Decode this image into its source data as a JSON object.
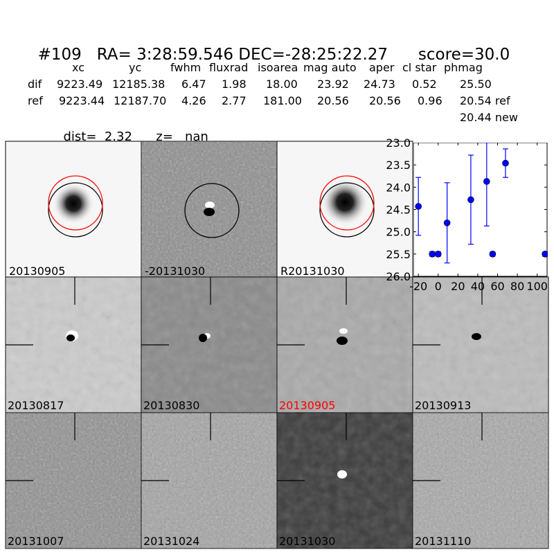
{
  "title": {
    "id": "#109",
    "coords": "RA= 3:28:59.546 DEC=-28:25:22.27",
    "score": "score=30.0"
  },
  "table": {
    "headers": [
      "xc",
      "yc",
      "fwhm",
      "fluxrad",
      "isoarea",
      "mag auto",
      "aper",
      "cl star",
      "phmag"
    ],
    "rows": [
      {
        "label": "dif",
        "values": [
          "9223.49",
          "12185.38",
          "6.47",
          "1.98",
          "18.00",
          "23.92",
          "24.73",
          "0.52",
          "25.50"
        ]
      },
      {
        "label": "ref",
        "values": [
          "9223.44",
          "12187.70",
          "4.26",
          "2.77",
          "181.00",
          "20.56",
          "20.56",
          "0.96",
          "20.54 ref"
        ]
      }
    ],
    "extra": "20.44 new"
  },
  "dist": {
    "dist": "dist=  2.32",
    "z": "z=   nan"
  },
  "stamps": [
    {
      "label": "20130905",
      "kind": "sci"
    },
    {
      "label": "-20131030",
      "kind": "diff"
    },
    {
      "label": "R20131030",
      "kind": "sci"
    },
    {
      "label": "20130817",
      "kind": "epoch",
      "bg": "#cbcbcb"
    },
    {
      "label": "20130830",
      "kind": "epoch",
      "bg": "#8a8a8a"
    },
    {
      "label": "20130905",
      "kind": "epoch",
      "bg": "#a9a9a9",
      "color": "#ff0000"
    },
    {
      "label": "20130913",
      "kind": "epoch",
      "bg": "#bcbcbc"
    },
    {
      "label": "20131007",
      "kind": "noise",
      "bg": "#8f8f8f"
    },
    {
      "label": "20131024",
      "kind": "noise",
      "bg": "#a3a3a3"
    },
    {
      "label": "20131030",
      "kind": "dark",
      "bg": "#3c3c3c"
    },
    {
      "label": "20131110",
      "kind": "noise",
      "bg": "#a7a7a7"
    }
  ],
  "chart_data": {
    "type": "scatter",
    "xlim": [
      -25,
      110
    ],
    "ylim": [
      26.0,
      23.0
    ],
    "xticks": [
      "-20",
      "0",
      "20",
      "40",
      "60",
      "80",
      "100"
    ],
    "yticks": [
      "23.0",
      "23.5",
      "24.0",
      "24.5",
      "25.0",
      "25.5",
      "26.0"
    ],
    "points": [
      {
        "x": -20,
        "y": 24.43,
        "yerr": 0.65
      },
      {
        "x": -6,
        "y": 25.5,
        "yerr": 0.05
      },
      {
        "x": 0,
        "y": 25.5,
        "yerr": 0.05
      },
      {
        "x": 9,
        "y": 24.8,
        "yerr": 0.9
      },
      {
        "x": 33,
        "y": 24.28,
        "yerr": 1.0
      },
      {
        "x": 49,
        "y": 23.87,
        "yerr": 1.0
      },
      {
        "x": 55,
        "y": 25.5,
        "yerr": 0.05
      },
      {
        "x": 68,
        "y": 23.46,
        "yerr": 0.32
      },
      {
        "x": 108,
        "y": 25.5,
        "yerr": 0.05
      }
    ],
    "color": "#0000ff"
  }
}
